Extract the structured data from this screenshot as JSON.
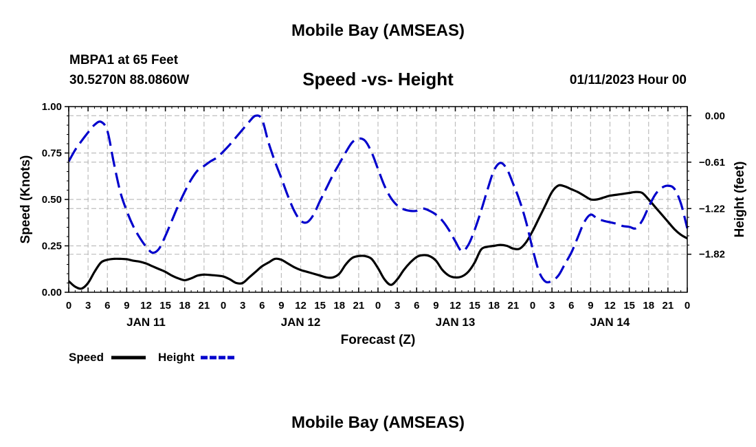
{
  "header": {
    "title": "Mobile Bay (AMSEAS)",
    "station": "MBPA1 at 65 Feet",
    "coords": "30.5270N  88.0860W",
    "subtitle": "Speed -vs- Height",
    "datetime": "01/11/2023 Hour 00"
  },
  "footer": {
    "title": "Mobile Bay (AMSEAS)"
  },
  "chart_data": {
    "type": "line",
    "title": "Speed -vs- Height",
    "xlabel": "Forecast (Z)",
    "ylabel": "Speed (Knots)",
    "y2label": "Height (feet)",
    "xlim": [
      0,
      96
    ],
    "ylim": [
      0,
      1.0
    ],
    "y2lim": [
      -2.32,
      0.12
    ],
    "x_tick_labels": [
      "0",
      "3",
      "6",
      "9",
      "12",
      "15",
      "18",
      "21",
      "0",
      "3",
      "6",
      "9",
      "12",
      "15",
      "18",
      "21",
      "0",
      "3",
      "6",
      "9",
      "12",
      "15",
      "18",
      "21",
      "0",
      "3",
      "6",
      "9",
      "12",
      "15",
      "18",
      "21",
      "0"
    ],
    "day_labels": [
      {
        "x": 12,
        "label": "JAN 11"
      },
      {
        "x": 36,
        "label": "JAN 12"
      },
      {
        "x": 60,
        "label": "JAN 13"
      },
      {
        "x": 84,
        "label": "JAN 14"
      }
    ],
    "y_ticks": [
      {
        "value": 0.0,
        "label": "0.00"
      },
      {
        "value": 0.25,
        "label": "0.25"
      },
      {
        "value": 0.5,
        "label": "0.50"
      },
      {
        "value": 0.75,
        "label": "0.75"
      },
      {
        "value": 1.0,
        "label": "1.00"
      }
    ],
    "y2_ticks": [
      {
        "value": 0.0,
        "label": "0.00"
      },
      {
        "value": -0.61,
        "label": "−0.61"
      },
      {
        "value": -1.22,
        "label": "−1.22"
      },
      {
        "value": -1.82,
        "label": "−1.82"
      }
    ],
    "grid": true,
    "legend_position": "bottom-left",
    "series": [
      {
        "name": "Speed",
        "axis": "left",
        "color": "#000000",
        "style": "solid",
        "x": [
          0,
          1,
          2,
          3,
          4,
          5,
          6,
          7,
          8,
          9,
          10,
          11,
          12,
          13,
          14,
          15,
          16,
          17,
          18,
          19,
          20,
          21,
          22,
          23,
          24,
          25,
          26,
          27,
          28,
          29,
          30,
          31,
          32,
          33,
          34,
          35,
          36,
          37,
          38,
          39,
          40,
          41,
          42,
          43,
          44,
          45,
          46,
          47,
          48,
          49,
          50,
          51,
          52,
          53,
          54,
          55,
          56,
          57,
          58,
          59,
          60,
          61,
          62,
          63,
          64,
          65,
          66,
          67,
          68,
          69,
          70,
          71,
          72,
          73,
          74,
          75,
          76,
          77,
          78,
          79,
          80,
          81,
          82,
          83,
          84,
          85,
          86,
          87,
          88,
          89,
          90,
          91,
          92,
          93,
          94,
          95,
          96
        ],
        "values": [
          0.06,
          0.03,
          0.02,
          0.05,
          0.11,
          0.16,
          0.175,
          0.18,
          0.18,
          0.178,
          0.17,
          0.165,
          0.155,
          0.14,
          0.125,
          0.11,
          0.09,
          0.075,
          0.065,
          0.075,
          0.09,
          0.095,
          0.093,
          0.09,
          0.085,
          0.07,
          0.05,
          0.05,
          0.08,
          0.11,
          0.14,
          0.16,
          0.18,
          0.175,
          0.155,
          0.135,
          0.12,
          0.11,
          0.1,
          0.09,
          0.08,
          0.08,
          0.1,
          0.15,
          0.185,
          0.195,
          0.195,
          0.18,
          0.13,
          0.07,
          0.04,
          0.07,
          0.12,
          0.16,
          0.19,
          0.2,
          0.195,
          0.17,
          0.12,
          0.09,
          0.08,
          0.085,
          0.11,
          0.16,
          0.23,
          0.245,
          0.25,
          0.255,
          0.25,
          0.235,
          0.235,
          0.27,
          0.33,
          0.4,
          0.47,
          0.54,
          0.575,
          0.57,
          0.555,
          0.54,
          0.52,
          0.5,
          0.5,
          0.51,
          0.52,
          0.525,
          0.53,
          0.535,
          0.54,
          0.535,
          0.5,
          0.46,
          0.42,
          0.38,
          0.34,
          0.31,
          0.29
        ]
      },
      {
        "name": "Height",
        "axis": "right",
        "color": "#0000cc",
        "style": "dashed",
        "x": [
          0,
          1,
          2,
          3,
          4,
          5,
          6,
          7,
          8,
          9,
          10,
          11,
          12,
          13,
          14,
          15,
          16,
          17,
          18,
          19,
          20,
          21,
          22,
          23,
          24,
          25,
          26,
          27,
          28,
          29,
          30,
          31,
          32,
          33,
          34,
          35,
          36,
          37,
          38,
          39,
          40,
          41,
          42,
          43,
          44,
          45,
          46,
          47,
          48,
          49,
          50,
          51,
          52,
          53,
          54,
          55,
          56,
          57,
          58,
          59,
          60,
          61,
          62,
          63,
          64,
          65,
          66,
          67,
          68,
          69,
          70,
          71,
          72,
          73,
          74,
          75,
          76,
          77,
          78,
          79,
          80,
          81,
          82,
          83,
          84,
          85,
          86,
          87,
          88,
          89,
          90,
          91,
          92,
          93,
          94,
          95,
          96
        ],
        "values": [
          -0.6,
          -0.45,
          -0.33,
          -0.22,
          -0.12,
          -0.08,
          -0.2,
          -0.62,
          -1.0,
          -1.25,
          -1.45,
          -1.6,
          -1.72,
          -1.8,
          -1.75,
          -1.58,
          -1.38,
          -1.18,
          -1.0,
          -0.84,
          -0.72,
          -0.66,
          -0.6,
          -0.55,
          -0.47,
          -0.38,
          -0.28,
          -0.18,
          -0.08,
          0.0,
          -0.05,
          -0.35,
          -0.6,
          -0.82,
          -1.05,
          -1.25,
          -1.38,
          -1.4,
          -1.3,
          -1.12,
          -0.95,
          -0.78,
          -0.63,
          -0.48,
          -0.35,
          -0.3,
          -0.33,
          -0.48,
          -0.7,
          -0.92,
          -1.08,
          -1.18,
          -1.23,
          -1.25,
          -1.25,
          -1.22,
          -1.25,
          -1.3,
          -1.38,
          -1.5,
          -1.65,
          -1.78,
          -1.7,
          -1.5,
          -1.25,
          -0.97,
          -0.72,
          -0.62,
          -0.7,
          -0.9,
          -1.12,
          -1.4,
          -1.75,
          -2.05,
          -2.18,
          -2.17,
          -2.1,
          -1.95,
          -1.8,
          -1.6,
          -1.4,
          -1.3,
          -1.35,
          -1.38,
          -1.4,
          -1.42,
          -1.45,
          -1.46,
          -1.48,
          -1.38,
          -1.2,
          -1.04,
          -0.95,
          -0.92,
          -0.96,
          -1.15,
          -1.48
        ]
      }
    ],
    "legend": [
      {
        "name": "Speed",
        "color": "#000000",
        "style": "solid"
      },
      {
        "name": "Height",
        "color": "#0000cc",
        "style": "dashed"
      }
    ]
  }
}
